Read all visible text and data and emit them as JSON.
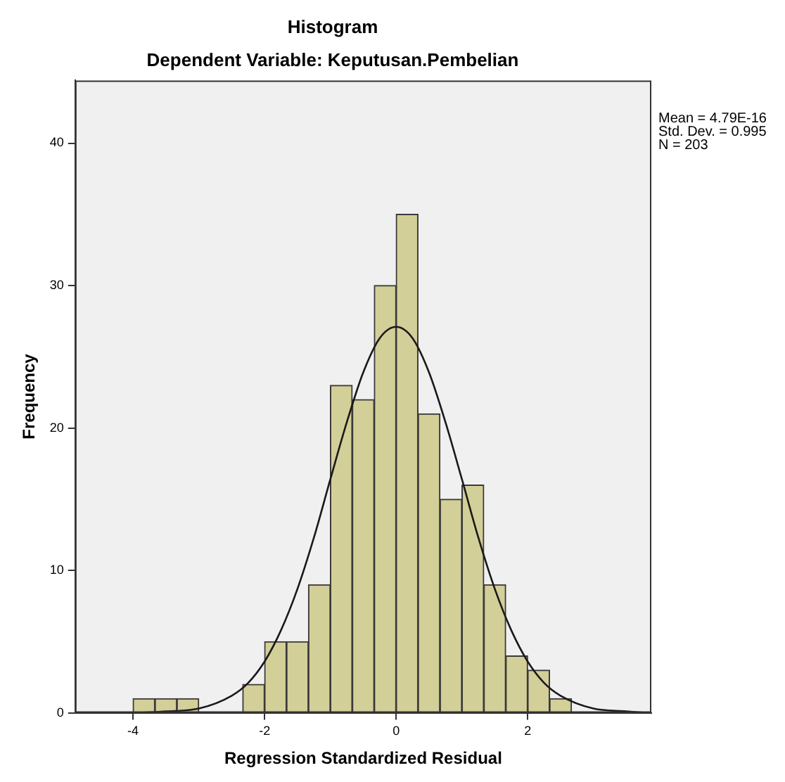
{
  "chart_data": {
    "type": "histogram",
    "title": "Histogram",
    "subtitle": "Dependent Variable: Keputusan.Pembelian",
    "xlabel": "Regression Standardized Residual",
    "ylabel": "Frequency",
    "annotations": [
      "Mean = 4.79E-16",
      "Std. Dev. = 0.995",
      "N = 203"
    ],
    "bins": [
      -4,
      -3.667,
      -3.333,
      -3,
      -2.667,
      -2.333,
      -2,
      -1.667,
      -1.333,
      -1,
      -0.667,
      -0.333,
      0,
      0.333,
      0.667,
      1,
      1.333,
      1.667,
      2,
      2.333,
      2.667
    ],
    "values": [
      1,
      1,
      1,
      0,
      0,
      2,
      5,
      5,
      9,
      23,
      22,
      30,
      35,
      21,
      15,
      16,
      9,
      4,
      3,
      1
    ],
    "color": "#d3cf98",
    "series": [
      {
        "type": "line",
        "color": "#1a1a1a",
        "x": [
          -4.8,
          -4,
          -3.5,
          -3,
          -2.5,
          -2.25,
          -2,
          -1.75,
          -1.5,
          -1.25,
          -1,
          -0.75,
          -0.5,
          -0.25,
          0,
          0.25,
          0.5,
          0.75,
          1,
          1.25,
          1.5,
          1.75,
          2,
          2.25,
          2.5,
          3,
          3.5,
          3.8
        ],
        "values": [
          0,
          0,
          0.1,
          0.3,
          1.2,
          2.1,
          3.6,
          5.8,
          8.7,
          12.3,
          16.4,
          20.4,
          23.9,
          26.3,
          27.1,
          26.3,
          23.9,
          20.4,
          16.4,
          12.3,
          8.7,
          5.8,
          3.6,
          2.1,
          1.2,
          0.3,
          0.1,
          0
        ]
      }
    ],
    "xlim": [
      -4.88,
      3.88
    ],
    "xticks": [
      -4,
      -2,
      0,
      2
    ],
    "ylim": [
      0,
      44.4
    ],
    "yticks": [
      0,
      10,
      20,
      30,
      40
    ],
    "grid": false
  }
}
